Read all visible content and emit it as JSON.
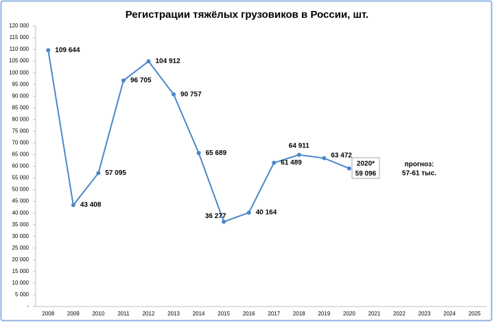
{
  "chart_data": {
    "type": "line",
    "title": "Регистрации тяжёлых грузовиков в России, шт.",
    "categories": [
      "2008",
      "2009",
      "2010",
      "2011",
      "2012",
      "2013",
      "2014",
      "2015",
      "2016",
      "2017",
      "2018",
      "2019",
      "2020",
      "2021",
      "2022",
      "2023",
      "2024",
      "2025"
    ],
    "series": [
      {
        "name": null,
        "color": "#4a86c8",
        "values": [
          109644,
          43408,
          57095,
          96705,
          104912,
          90757,
          65689,
          36277,
          40164,
          61489,
          64911,
          63472,
          59096,
          null,
          null,
          null,
          null,
          null
        ],
        "value_labels": [
          "109 644",
          "43 408",
          "57 095",
          "96 705",
          "104 912",
          "90 757",
          "65 689",
          "36 277",
          "40 164",
          "61 489",
          "64 911",
          "63 472",
          "59 096",
          null,
          null,
          null,
          null,
          null
        ]
      }
    ],
    "annotations": [
      "2020*",
      "прогноз:",
      "57-61 тыс."
    ],
    "ylim": [
      0,
      120000
    ],
    "yticks": [
      {
        "value": 0,
        "label": "-"
      },
      {
        "value": 5000,
        "label": "5 000"
      },
      {
        "value": 10000,
        "label": "10 000"
      },
      {
        "value": 15000,
        "label": "15 000"
      },
      {
        "value": 20000,
        "label": "20 000"
      },
      {
        "value": 25000,
        "label": "25 000"
      },
      {
        "value": 30000,
        "label": "30 000"
      },
      {
        "value": 35000,
        "label": "35 000"
      },
      {
        "value": 40000,
        "label": "40 000"
      },
      {
        "value": 45000,
        "label": "45 000"
      },
      {
        "value": 50000,
        "label": "50 000"
      },
      {
        "value": 55000,
        "label": "55 000"
      },
      {
        "value": 60000,
        "label": "60 000"
      },
      {
        "value": 65000,
        "label": "65 000"
      },
      {
        "value": 70000,
        "label": "70 000"
      },
      {
        "value": 75000,
        "label": "75 000"
      },
      {
        "value": 80000,
        "label": "80 000"
      },
      {
        "value": 85000,
        "label": "85 000"
      },
      {
        "value": 90000,
        "label": "90 000"
      },
      {
        "value": 95000,
        "label": "95 000"
      },
      {
        "value": 100000,
        "label": "100 000"
      },
      {
        "value": 105000,
        "label": "105 000"
      },
      {
        "value": 110000,
        "label": "110 000"
      },
      {
        "value": 115000,
        "label": "115 000"
      },
      {
        "value": 120000,
        "label": "120 000"
      }
    ],
    "grid": false
  }
}
